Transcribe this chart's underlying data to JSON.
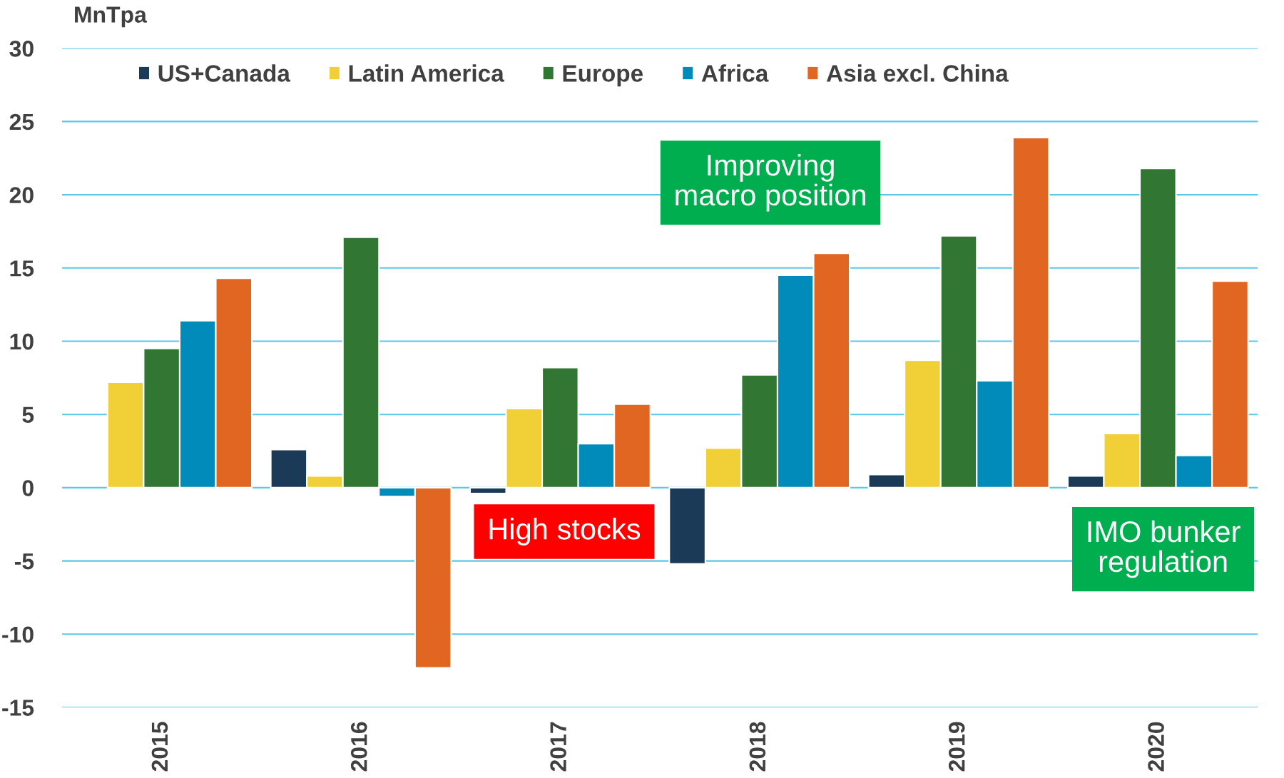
{
  "chart_data": {
    "type": "bar",
    "ylabel": "MnTpa",
    "categories": [
      "2015",
      "2016",
      "2017",
      "2018",
      "2019",
      "2020"
    ],
    "series": [
      {
        "name": "US+Canada",
        "color": "#1b3a57",
        "values": [
          null,
          2.6,
          -0.4,
          -5.2,
          0.9,
          0.8
        ]
      },
      {
        "name": "Latin America",
        "color": "#f0cf37",
        "values": [
          7.2,
          0.8,
          5.4,
          2.7,
          8.7,
          3.7
        ]
      },
      {
        "name": "Europe",
        "color": "#317733",
        "values": [
          9.5,
          17.1,
          8.2,
          7.7,
          17.2,
          21.8
        ]
      },
      {
        "name": "Africa",
        "color": "#008bba",
        "values": [
          11.4,
          -0.6,
          3.0,
          14.5,
          7.3,
          2.2
        ]
      },
      {
        "name": "Asia excl. China",
        "color": "#e06622",
        "values": [
          14.3,
          -12.3,
          5.7,
          16.0,
          23.9,
          14.1
        ]
      }
    ],
    "ylim": [
      -15,
      30
    ],
    "yticks": [
      -15,
      -10,
      -5,
      0,
      5,
      10,
      15,
      20,
      25,
      30
    ],
    "grid": "y",
    "legend": "top",
    "annotations": [
      "Improving\nmacro position",
      "High stocks",
      "IMO bunker\nregulation"
    ]
  }
}
